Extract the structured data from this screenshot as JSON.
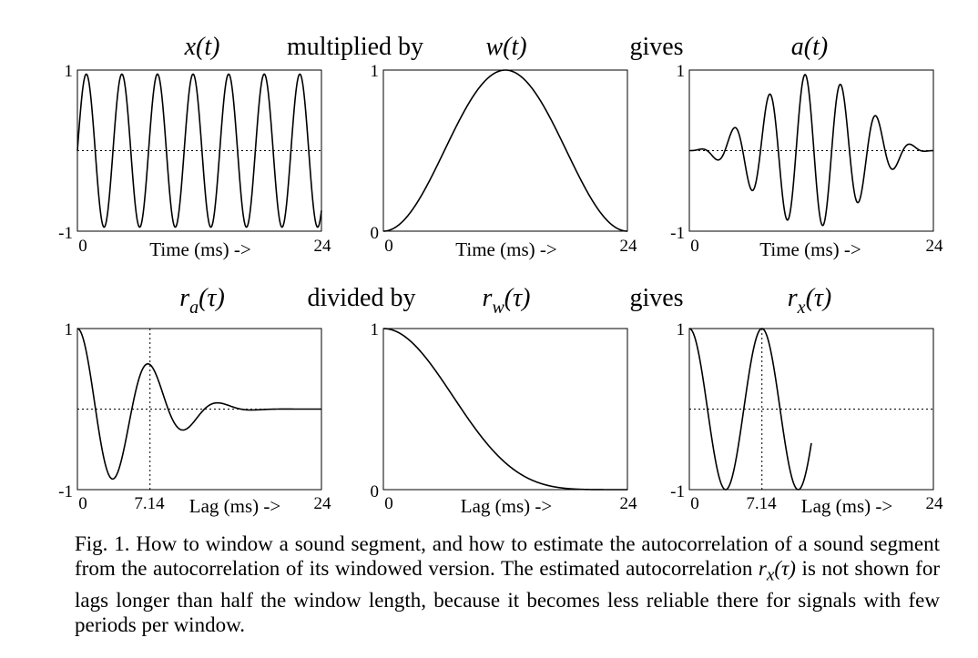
{
  "row1": {
    "labels": [
      {
        "id": "x",
        "func": "x",
        "sub": "",
        "arg": "(t)"
      },
      {
        "id": "op1",
        "text": "multiplied by"
      },
      {
        "id": "w",
        "func": "w",
        "sub": "",
        "arg": "(t)"
      },
      {
        "id": "op2",
        "text": "gives"
      },
      {
        "id": "a",
        "func": "a",
        "sub": "",
        "arg": "(t)"
      }
    ]
  },
  "row2": {
    "labels": [
      {
        "id": "ra",
        "func": "r",
        "sub": "a",
        "arg": "(τ)"
      },
      {
        "id": "op3",
        "text": "divided by"
      },
      {
        "id": "rw",
        "func": "r",
        "sub": "w",
        "arg": "(τ)"
      },
      {
        "id": "op4",
        "text": "gives"
      },
      {
        "id": "rx",
        "func": "r",
        "sub": "x",
        "arg": "(τ)"
      }
    ]
  },
  "chart_data": [
    {
      "id": "x_t",
      "type": "line",
      "func": "x(t)",
      "xlabel": "Time (ms) ->",
      "xlim": [
        0,
        24
      ],
      "ylim": [
        -1,
        1
      ],
      "xticks": [
        "0",
        "24"
      ],
      "yticks": [
        "1",
        "-1"
      ],
      "zero_line": "dotted",
      "signal": "sine",
      "period_ms": 3.5,
      "amplitude": 0.95
    },
    {
      "id": "w_t",
      "type": "line",
      "func": "w(t)",
      "xlabel": "Time (ms) ->",
      "xlim": [
        0,
        24
      ],
      "ylim": [
        0,
        1
      ],
      "xticks": [
        "0",
        "24"
      ],
      "yticks": [
        "1",
        "0"
      ],
      "signal": "hanning window"
    },
    {
      "id": "a_t",
      "type": "line",
      "func": "a(t)",
      "xlabel": "Time (ms) ->",
      "xlim": [
        0,
        24
      ],
      "ylim": [
        -1,
        1
      ],
      "xticks": [
        "0",
        "24"
      ],
      "yticks": [
        "1",
        "-1"
      ],
      "zero_line": "dotted",
      "signal": "windowed sine"
    },
    {
      "id": "ra_tau",
      "type": "line",
      "func": "ra(τ)",
      "xlabel": "Lag (ms) ->",
      "xlim": [
        0,
        24
      ],
      "ylim": [
        -1,
        1
      ],
      "xticks": [
        "0",
        "7.14",
        "24"
      ],
      "yticks": [
        "1",
        "-1"
      ],
      "zero_line": "dotted",
      "marker_x": 7.14,
      "signal": "autocorrelation of a(t)"
    },
    {
      "id": "rw_tau",
      "type": "line",
      "func": "rw(τ)",
      "xlabel": "Lag (ms) ->",
      "xlim": [
        0,
        24
      ],
      "ylim": [
        0,
        1
      ],
      "xticks": [
        "0",
        "24"
      ],
      "yticks": [
        "1",
        "0"
      ],
      "signal": "autocorrelation of w(t)"
    },
    {
      "id": "rx_tau",
      "type": "line",
      "func": "rx(τ)",
      "xlabel": "Lag (ms) ->",
      "xlim": [
        0,
        24
      ],
      "ylim": [
        -1,
        1
      ],
      "xticks": [
        "0",
        "7.14",
        "24"
      ],
      "yticks": [
        "1",
        "-1"
      ],
      "zero_line": "dotted",
      "marker_x": 7.14,
      "max_lag_ms": 12,
      "signal": "ra(τ) divided by rw(τ)"
    }
  ],
  "caption": {
    "part1": "Fig. 1. How to window a sound segment, and how to estimate the autocorrelation of a sound segment from the autocorrelation of its windowed version. The estimated autocorrelation ",
    "func": "r",
    "sub": "x",
    "arg": "(τ)",
    "part2": " is not shown for lags longer than half the window length, because it becomes less reliable there for signals with few periods per window."
  }
}
